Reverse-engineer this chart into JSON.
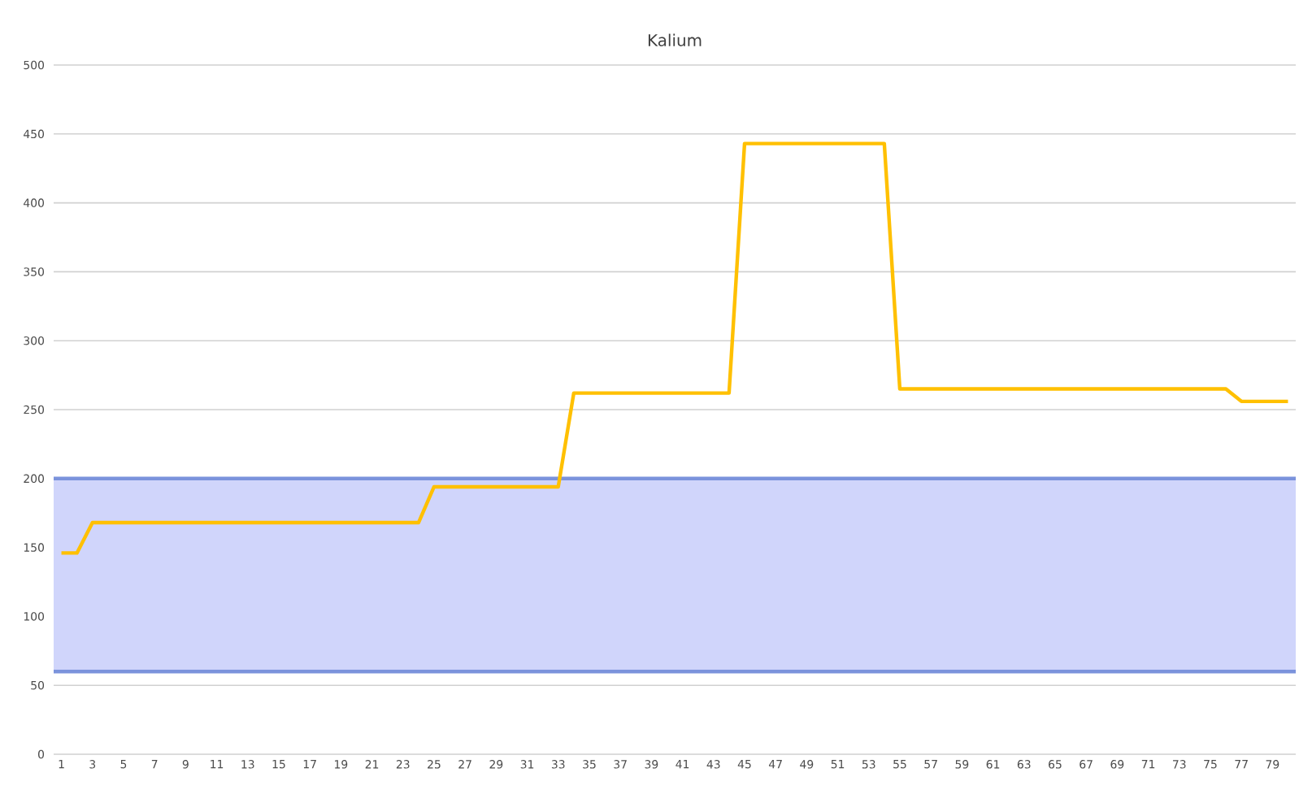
{
  "chart_data": {
    "type": "line",
    "title": "Kalium",
    "categories": [
      "1",
      null,
      "3",
      null,
      "5",
      null,
      "7",
      null,
      "9",
      null,
      "11",
      null,
      "13",
      null,
      "15",
      null,
      "17",
      null,
      "19",
      null,
      "21",
      null,
      "23",
      null,
      "25",
      null,
      "27",
      null,
      "29",
      null,
      "31",
      null,
      "33",
      null,
      "35",
      null,
      "37",
      null,
      "39",
      null,
      "41",
      null,
      "43",
      null,
      "45",
      null,
      "47",
      null,
      "49",
      null,
      "51",
      null,
      "53",
      null,
      "55",
      null,
      "57",
      null,
      "59",
      null,
      "61",
      null,
      "63",
      null,
      "65",
      null,
      "67",
      null,
      "69",
      null,
      "71",
      null,
      "73",
      null,
      "75",
      null,
      "77",
      null,
      "79",
      null
    ],
    "series": [
      {
        "color": "#ffc000",
        "values": [
          146,
          146,
          168,
          168,
          168,
          168,
          168,
          168,
          168,
          168,
          168,
          168,
          168,
          168,
          168,
          168,
          168,
          168,
          168,
          168,
          168,
          168,
          168,
          168,
          194,
          194,
          194,
          194,
          194,
          194,
          194,
          194,
          194,
          262,
          262,
          262,
          262,
          262,
          262,
          262,
          262,
          262,
          262,
          262,
          443,
          443,
          443,
          443,
          443,
          443,
          443,
          443,
          443,
          443,
          265,
          265,
          265,
          265,
          265,
          265,
          265,
          265,
          265,
          265,
          265,
          265,
          265,
          265,
          265,
          265,
          265,
          265,
          265,
          265,
          265,
          265,
          256,
          256,
          256,
          256
        ]
      }
    ],
    "ylim": [
      0,
      500
    ],
    "yticks": [
      0,
      50,
      100,
      150,
      200,
      250,
      300,
      350,
      400,
      450,
      500
    ],
    "grid": "y",
    "marker": "none",
    "line_style": "solid",
    "bands": [
      {
        "axis": "y",
        "from": 60,
        "to": 200,
        "color": "#d0d5fb"
      }
    ],
    "ref_lines": [
      {
        "axis": "y",
        "value": 60,
        "color": "#7b93dc"
      },
      {
        "axis": "y",
        "value": 200,
        "color": "#7b93dc"
      }
    ]
  }
}
